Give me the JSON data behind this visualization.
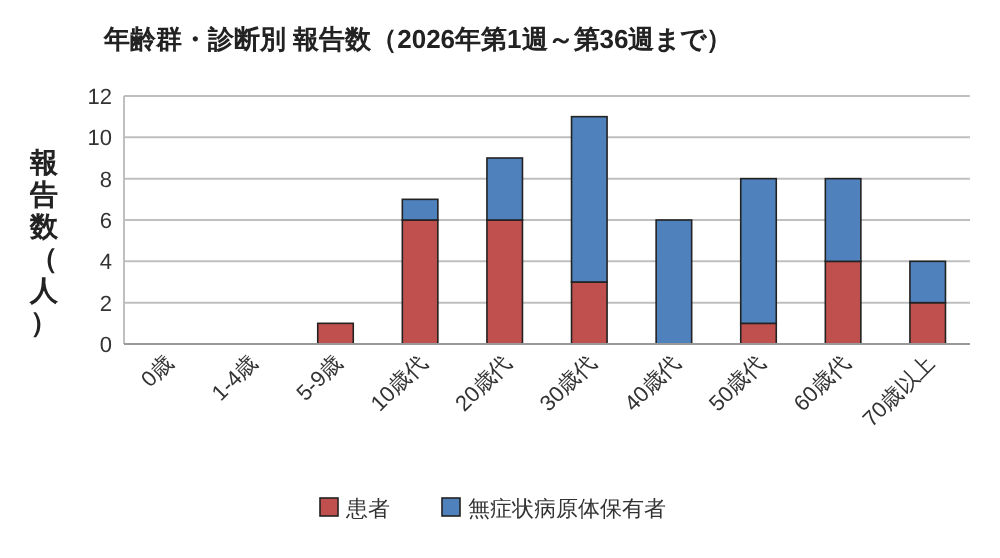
{
  "chart_data": {
    "type": "bar",
    "title": "年齢群・診断別  報告数（2026年第1週～第36週まで）",
    "ylabel": "報告数（人）",
    "categories": [
      "0歳",
      "1-4歳",
      "5-9歳",
      "10歳代",
      "20歳代",
      "30歳代",
      "40歳代",
      "50歳代",
      "60歳代",
      "70歳以上"
    ],
    "series": [
      {
        "name": "患者",
        "color": "#c0504d",
        "values": [
          0,
          0,
          1,
          6,
          6,
          3,
          0,
          1,
          4,
          2
        ]
      },
      {
        "name": "無症状病原体保有者",
        "color": "#4f81bd",
        "values": [
          0,
          0,
          0,
          1,
          3,
          8,
          6,
          7,
          4,
          2
        ]
      }
    ],
    "stacked": true,
    "ylim": [
      0,
      12
    ],
    "yticks": [
      0,
      2,
      4,
      6,
      8,
      10,
      12
    ],
    "grid": "y",
    "legend": "bottom"
  }
}
